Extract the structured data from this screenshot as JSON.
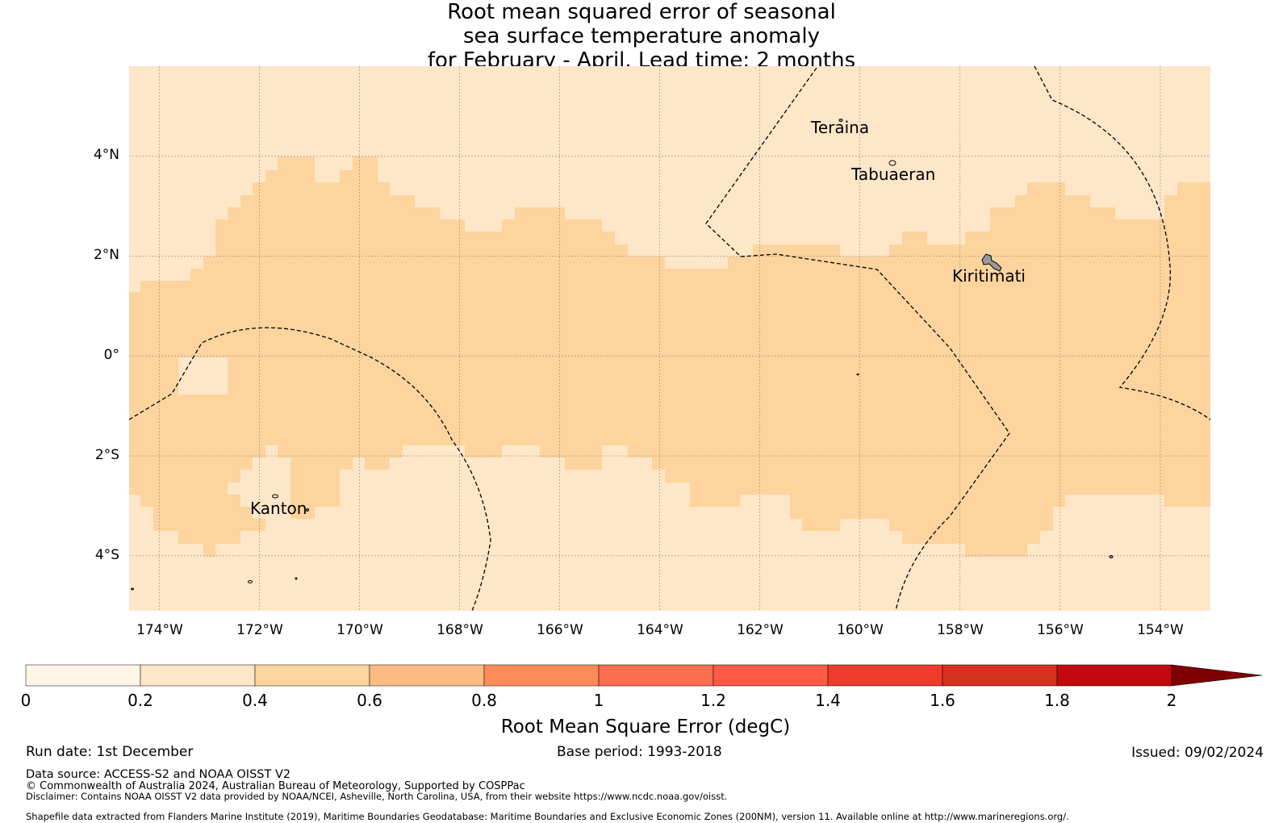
{
  "title": {
    "line1": "Root mean squared error of seasonal",
    "line2": "sea surface temperature anomaly",
    "line3": "for February - April. Lead time: 2 months"
  },
  "map": {
    "lat_labels": [
      "4°N",
      "2°N",
      "0°",
      "2°S",
      "4°S"
    ],
    "lat_values": [
      4,
      2,
      0,
      -2,
      -4
    ],
    "lon_labels": [
      "174°W",
      "172°W",
      "170°W",
      "168°W",
      "166°W",
      "164°W",
      "162°W",
      "160°W",
      "158°W",
      "156°W",
      "154°W"
    ],
    "lon_values": [
      -174,
      -172,
      -170,
      -168,
      -166,
      -164,
      -162,
      -160,
      -158,
      -156,
      -154
    ],
    "extent": {
      "lon_min": -174.6,
      "lon_max": -153.0,
      "lat_min": -5.1,
      "lat_max": 5.8
    },
    "places": {
      "teraina": "Teraina",
      "tabuaeran": "Tabuaeran",
      "kiritimati": "Kiritimati",
      "kanton": "Kanton"
    },
    "field_description": "RMSE mostly 0.2-0.4 degC with an equatorial band of 0.4-0.6 degC"
  },
  "colorbar": {
    "ticks": [
      "0",
      "0.2",
      "0.4",
      "0.6",
      "0.8",
      "1",
      "1.2",
      "1.4",
      "1.6",
      "1.8",
      "2"
    ],
    "colors": [
      "#fff5e6",
      "#fee6c8",
      "#fdd49e",
      "#fdbb84",
      "#fc8d59",
      "#fc6e4e",
      "#fe5a45",
      "#ef3b2c",
      "#d7301f",
      "#c4080e",
      "#b20000"
    ],
    "extend_color": "#7f0000",
    "label": "Root Mean Square Error (degC)"
  },
  "colors": {
    "low_bin": "#fee6c8",
    "mid_bin": "#fdd49e"
  },
  "footer": {
    "run_date": "Run date: 1st December",
    "base_period": "Base period: 1993-2018",
    "issued": "Issued: 09/02/2024",
    "data_source": "Data source: ACCESS-S2 and NOAA OISST V2",
    "copyright": "© Commonwealth of Australia 2024, Australian Bureau of Meteorology, Supported by COSPPac",
    "disclaimer": "Disclaimer: Contains NOAA OISST V2 data provided by NOAA/NCEI, Asheville, North Carolina, USA, from their website https://www.ncdc.noaa.gov/oisst.",
    "shapefile": "Shapefile data extracted from Flanders Marine Institute (2019), Maritime Boundaries Geodatabase: Maritime Boundaries and Exclusive Economic Zones (200NM), version 11. Available online at http://www.marineregions.org/."
  }
}
